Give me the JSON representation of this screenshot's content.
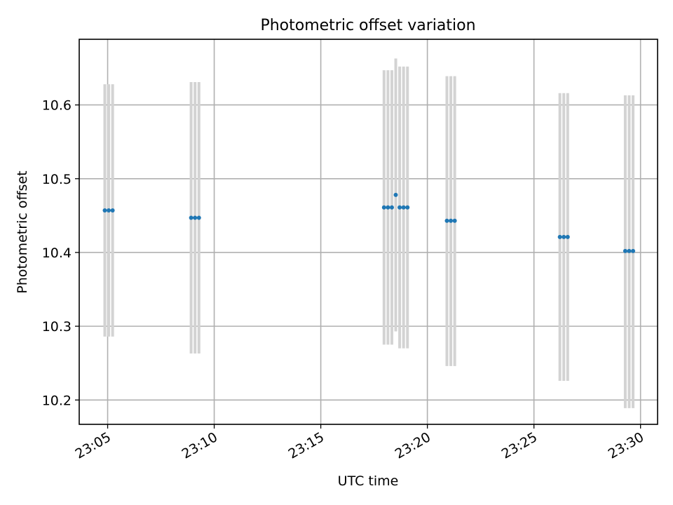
{
  "chart_data": {
    "type": "scatter",
    "title": "Photometric offset variation",
    "xlabel": "UTC time",
    "ylabel": "Photometric offset",
    "xlim": [
      "23:03:40",
      "23:30:48"
    ],
    "ylim": [
      10.167,
      10.689
    ],
    "x_ticks": [
      "23:05",
      "23:10",
      "23:15",
      "23:20",
      "23:25",
      "23:30"
    ],
    "y_ticks": [
      "10.2",
      "10.3",
      "10.4",
      "10.5",
      "10.6"
    ],
    "grid": true,
    "colors": {
      "points": "#1f77b4",
      "error_bars": "#d3d3d3"
    },
    "points": [
      {
        "x": "23:04:52",
        "y": 10.457,
        "ymin": 10.286,
        "ymax": 10.628
      },
      {
        "x": "23:05:03",
        "y": 10.457,
        "ymin": 10.286,
        "ymax": 10.628
      },
      {
        "x": "23:05:14",
        "y": 10.457,
        "ymin": 10.286,
        "ymax": 10.628
      },
      {
        "x": "23:08:55",
        "y": 10.447,
        "ymin": 10.263,
        "ymax": 10.631
      },
      {
        "x": "23:09:06",
        "y": 10.447,
        "ymin": 10.263,
        "ymax": 10.631
      },
      {
        "x": "23:09:17",
        "y": 10.447,
        "ymin": 10.263,
        "ymax": 10.631
      },
      {
        "x": "23:17:58",
        "y": 10.461,
        "ymin": 10.275,
        "ymax": 10.647
      },
      {
        "x": "23:18:09",
        "y": 10.461,
        "ymin": 10.275,
        "ymax": 10.647
      },
      {
        "x": "23:18:20",
        "y": 10.461,
        "ymin": 10.275,
        "ymax": 10.647
      },
      {
        "x": "23:18:31",
        "y": 10.478,
        "ymin": 10.293,
        "ymax": 10.663
      },
      {
        "x": "23:18:42",
        "y": 10.461,
        "ymin": 10.27,
        "ymax": 10.652
      },
      {
        "x": "23:18:53",
        "y": 10.461,
        "ymin": 10.27,
        "ymax": 10.652
      },
      {
        "x": "23:19:04",
        "y": 10.461,
        "ymin": 10.27,
        "ymax": 10.652
      },
      {
        "x": "23:20:55",
        "y": 10.443,
        "ymin": 10.246,
        "ymax": 10.639
      },
      {
        "x": "23:21:06",
        "y": 10.443,
        "ymin": 10.246,
        "ymax": 10.639
      },
      {
        "x": "23:21:17",
        "y": 10.443,
        "ymin": 10.246,
        "ymax": 10.639
      },
      {
        "x": "23:26:13",
        "y": 10.421,
        "ymin": 10.226,
        "ymax": 10.616
      },
      {
        "x": "23:26:24",
        "y": 10.421,
        "ymin": 10.226,
        "ymax": 10.616
      },
      {
        "x": "23:26:35",
        "y": 10.421,
        "ymin": 10.226,
        "ymax": 10.616
      },
      {
        "x": "23:29:17",
        "y": 10.402,
        "ymin": 10.189,
        "ymax": 10.613
      },
      {
        "x": "23:29:28",
        "y": 10.402,
        "ymin": 10.189,
        "ymax": 10.613
      },
      {
        "x": "23:29:39",
        "y": 10.402,
        "ymin": 10.189,
        "ymax": 10.613
      }
    ]
  }
}
